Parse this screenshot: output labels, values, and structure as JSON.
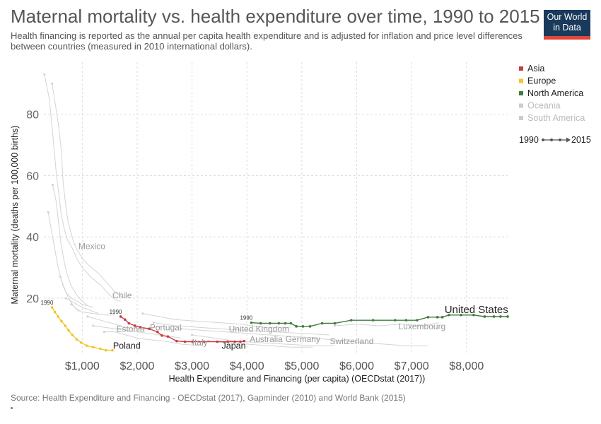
{
  "header": {
    "title": "Maternal mortality vs. health expenditure over time, 1990 to 2015",
    "subtitle": "Health financing is reported as the annual per capita health expenditure and is adjusted for inflation and price level differences between countries (measured in 2010 international dollars).",
    "logo_line1": "Our World",
    "logo_line2": "in Data"
  },
  "footer": {
    "source": "Source: Health Expenditure and Financing - OECDstat (2017), Gapminder (2010) and World Bank (2015)"
  },
  "legend": {
    "items": [
      {
        "label": "Asia",
        "color": "#c93a46",
        "faded": false
      },
      {
        "label": "Europe",
        "color": "#f2c42e",
        "faded": false
      },
      {
        "label": "North America",
        "color": "#3e7e3e",
        "faded": false
      },
      {
        "label": "Oceania",
        "color": "#cccccc",
        "faded": true
      },
      {
        "label": "South America",
        "color": "#cccccc",
        "faded": true
      }
    ],
    "time_start": "1990",
    "time_end": "2015"
  },
  "chart_data": {
    "type": "scatter",
    "title": "Maternal mortality vs. health expenditure over time, 1990 to 2015",
    "xlabel": "Health Expenditure and Financing (per capita) (OECDstat (2017))",
    "ylabel": "Maternal mortality (deaths per 100,000 births)",
    "xlim": [
      300,
      8750
    ],
    "ylim": [
      2,
      97
    ],
    "x_ticks": [
      1000,
      2000,
      3000,
      4000,
      5000,
      6000,
      7000,
      8000
    ],
    "x_tick_labels": [
      "$1,000",
      "$2,000",
      "$3,000",
      "$4,000",
      "$5,000",
      "$6,000",
      "$7,000",
      "$8,000"
    ],
    "y_ticks": [
      20,
      40,
      60,
      80
    ],
    "y_tick_labels": [
      "20",
      "40",
      "60",
      "80"
    ],
    "grid": true,
    "legend_position": "right",
    "highlighted_series": [
      {
        "name": "United States",
        "region": "North America",
        "color": "#3e7e3e",
        "start_label": "1990",
        "points": [
          [
            4080,
            12
          ],
          [
            4250,
            11.8
          ],
          [
            4420,
            11.8
          ],
          [
            4580,
            11.8
          ],
          [
            4700,
            11.8
          ],
          [
            4800,
            11.8
          ],
          [
            4900,
            10.8
          ],
          [
            5020,
            10.8
          ],
          [
            5150,
            10.8
          ],
          [
            5370,
            11.8
          ],
          [
            5600,
            11.8
          ],
          [
            5900,
            12.8
          ],
          [
            6300,
            12.8
          ],
          [
            6700,
            12.8
          ],
          [
            6900,
            12.8
          ],
          [
            7100,
            12.8
          ],
          [
            7300,
            13.8
          ],
          [
            7470,
            13.8
          ],
          [
            7560,
            13.8
          ],
          [
            7680,
            14.5
          ],
          [
            7900,
            14.5
          ],
          [
            8130,
            14.5
          ],
          [
            8330,
            14
          ],
          [
            8500,
            14
          ],
          [
            8620,
            14
          ],
          [
            8750,
            14
          ]
        ]
      },
      {
        "name": "Japan",
        "region": "Asia",
        "color": "#c93a46",
        "start_label": "1990",
        "points": [
          [
            1700,
            14
          ],
          [
            1780,
            13
          ],
          [
            1850,
            11.8
          ],
          [
            1960,
            11
          ],
          [
            2060,
            10.5
          ],
          [
            2220,
            10
          ],
          [
            2370,
            9
          ],
          [
            2450,
            7.8
          ],
          [
            2560,
            7.5
          ],
          [
            2720,
            6
          ],
          [
            2870,
            5.8
          ],
          [
            3010,
            5.8
          ],
          [
            3220,
            5.8
          ],
          [
            3460,
            5.8
          ],
          [
            3650,
            5.8
          ],
          [
            3780,
            5.8
          ],
          [
            3880,
            5.8
          ],
          [
            3950,
            6
          ]
        ]
      },
      {
        "name": "Poland",
        "region": "Europe",
        "color": "#f2c42e",
        "start_label": "1990",
        "points": [
          [
            450,
            17
          ],
          [
            500,
            15.5
          ],
          [
            560,
            14
          ],
          [
            620,
            12.5
          ],
          [
            690,
            11
          ],
          [
            750,
            9.5
          ],
          [
            820,
            8
          ],
          [
            900,
            6.5
          ],
          [
            980,
            5.5
          ],
          [
            1080,
            4.5
          ],
          [
            1200,
            4
          ],
          [
            1330,
            3.5
          ],
          [
            1430,
            3
          ],
          [
            1550,
            3
          ]
        ]
      }
    ],
    "background_lines": {
      "color": "#d4d4d4",
      "lines": [
        [
          [
            310,
            93
          ],
          [
            400,
            85
          ],
          [
            480,
            70
          ],
          [
            530,
            60
          ],
          [
            580,
            53
          ],
          [
            620,
            47
          ],
          [
            680,
            42
          ],
          [
            730,
            39
          ],
          [
            800,
            37
          ],
          [
            900,
            33
          ],
          [
            1000,
            30
          ],
          [
            1150,
            27
          ],
          [
            1350,
            24
          ],
          [
            1500,
            21
          ],
          [
            1600,
            19.5
          ],
          [
            1700,
            19
          ]
        ],
        [
          [
            450,
            90
          ],
          [
            520,
            82
          ],
          [
            570,
            76
          ],
          [
            620,
            68
          ],
          [
            650,
            58
          ],
          [
            700,
            50
          ],
          [
            740,
            45
          ],
          [
            800,
            41
          ],
          [
            850,
            38
          ],
          [
            900,
            36
          ],
          [
            1000,
            33
          ],
          [
            1100,
            31
          ],
          [
            1200,
            29.5
          ],
          [
            1300,
            28
          ],
          [
            1400,
            26
          ],
          [
            1500,
            24
          ],
          [
            1600,
            22
          ],
          [
            1750,
            20
          ]
        ],
        [
          [
            460,
            57
          ],
          [
            520,
            52
          ],
          [
            560,
            46
          ],
          [
            610,
            38
          ],
          [
            670,
            32
          ],
          [
            720,
            28
          ],
          [
            800,
            24
          ],
          [
            900,
            21
          ],
          [
            1000,
            19
          ],
          [
            1100,
            17.5
          ]
        ],
        [
          [
            380,
            48
          ],
          [
            430,
            43
          ],
          [
            480,
            38
          ],
          [
            520,
            34
          ],
          [
            560,
            30
          ],
          [
            620,
            26
          ],
          [
            700,
            22
          ],
          [
            780,
            19
          ],
          [
            860,
            17
          ],
          [
            950,
            15.5
          ]
        ],
        [
          [
            600,
            27
          ],
          [
            650,
            24
          ],
          [
            700,
            22
          ],
          [
            800,
            20
          ],
          [
            900,
            19
          ],
          [
            1000,
            18
          ],
          [
            1100,
            17.5
          ],
          [
            1200,
            17
          ]
        ],
        [
          [
            700,
            20
          ],
          [
            800,
            19
          ],
          [
            900,
            18
          ],
          [
            1000,
            17
          ],
          [
            1150,
            16
          ],
          [
            1300,
            15
          ]
        ],
        [
          [
            800,
            18
          ],
          [
            900,
            16.5
          ],
          [
            1000,
            15.5
          ],
          [
            1200,
            15
          ],
          [
            1400,
            14.5
          ],
          [
            1600,
            14.5
          ]
        ],
        [
          [
            1100,
            14
          ],
          [
            1300,
            13
          ],
          [
            1500,
            12
          ],
          [
            1700,
            11
          ],
          [
            1900,
            10
          ],
          [
            2100,
            10
          ],
          [
            2300,
            10.5
          ],
          [
            2500,
            11
          ]
        ],
        [
          [
            1200,
            11
          ],
          [
            1400,
            10.5
          ],
          [
            1600,
            10
          ],
          [
            1800,
            9.5
          ],
          [
            2000,
            9
          ],
          [
            2200,
            8.5
          ],
          [
            2400,
            8
          ],
          [
            2600,
            7.5
          ],
          [
            2800,
            7
          ]
        ],
        [
          [
            1400,
            9
          ],
          [
            1600,
            9
          ],
          [
            1800,
            8
          ],
          [
            2000,
            7
          ],
          [
            2200,
            6.5
          ],
          [
            2500,
            6
          ],
          [
            2800,
            5
          ],
          [
            3200,
            4.5
          ]
        ],
        [
          [
            2100,
            15
          ],
          [
            2400,
            14
          ],
          [
            2700,
            13
          ],
          [
            3100,
            12.5
          ],
          [
            3500,
            12
          ],
          [
            3900,
            11.5
          ],
          [
            4300,
            10.5
          ],
          [
            4800,
            10.5
          ]
        ],
        [
          [
            2300,
            12
          ],
          [
            2700,
            11
          ],
          [
            3100,
            10.5
          ],
          [
            3500,
            10
          ],
          [
            4000,
            9.5
          ],
          [
            4500,
            9
          ],
          [
            5000,
            8.5
          ],
          [
            5500,
            8
          ]
        ],
        [
          [
            2800,
            10
          ],
          [
            3200,
            9.5
          ],
          [
            3600,
            9
          ],
          [
            4000,
            8.5
          ],
          [
            4400,
            8
          ],
          [
            4800,
            7.5
          ],
          [
            5300,
            7
          ]
        ],
        [
          [
            3000,
            8
          ],
          [
            3400,
            7
          ],
          [
            3800,
            6
          ],
          [
            4200,
            5.5
          ],
          [
            4700,
            5
          ],
          [
            5200,
            4.5
          ],
          [
            5600,
            4.5
          ]
        ],
        [
          [
            5200,
            7
          ],
          [
            5500,
            6.5
          ],
          [
            5800,
            6
          ],
          [
            6100,
            5.5
          ],
          [
            6500,
            5
          ],
          [
            6900,
            4.5
          ],
          [
            7300,
            4.5
          ]
        ],
        [
          [
            5600,
            11
          ],
          [
            6000,
            11.5
          ],
          [
            6400,
            11
          ],
          [
            6800,
            11.5
          ],
          [
            7200,
            11
          ],
          [
            7500,
            12
          ]
        ],
        [
          [
            3300,
            6
          ],
          [
            3600,
            5.5
          ],
          [
            4000,
            5
          ],
          [
            4400,
            4.5
          ],
          [
            4800,
            4
          ],
          [
            5200,
            4
          ]
        ]
      ]
    },
    "annotations": [
      {
        "text": "Mexico",
        "x": 930,
        "y": 36
      },
      {
        "text": "Chile",
        "x": 1550,
        "y": 20
      },
      {
        "text": "Estonia",
        "x": 1620,
        "y": 9
      },
      {
        "text": "Portugal",
        "x": 2230,
        "y": 9.5
      },
      {
        "text": "United Kingdom",
        "x": 3670,
        "y": 9
      },
      {
        "text": "Australia",
        "x": 4050,
        "y": 5.7
      },
      {
        "text": "Germany",
        "x": 4700,
        "y": 5.7
      },
      {
        "text": "Italy",
        "x": 3000,
        "y": 4.7
      },
      {
        "text": "Switzerland",
        "x": 5510,
        "y": 5
      },
      {
        "text": "Luxembourg",
        "x": 6760,
        "y": 9.8
      }
    ]
  }
}
